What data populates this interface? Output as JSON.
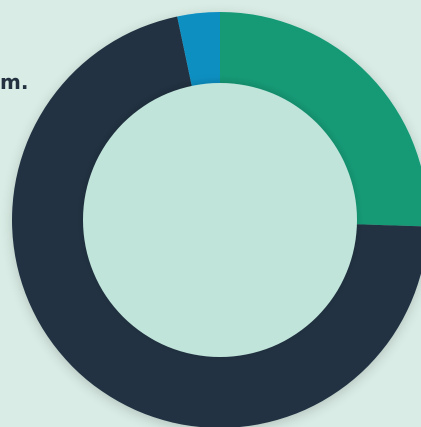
{
  "fragment_text": "m.",
  "chart_data": {
    "type": "pie",
    "variant": "donut",
    "title": "",
    "legend": "none",
    "colors": {
      "background": "#d9ece5",
      "inner": "#c0e4da"
    },
    "series": [
      {
        "value": 0.255,
        "color": "#129a76"
      },
      {
        "value": 0.712,
        "color": "#233342"
      },
      {
        "value": 0.033,
        "color": "#0d8fc2"
      }
    ]
  }
}
